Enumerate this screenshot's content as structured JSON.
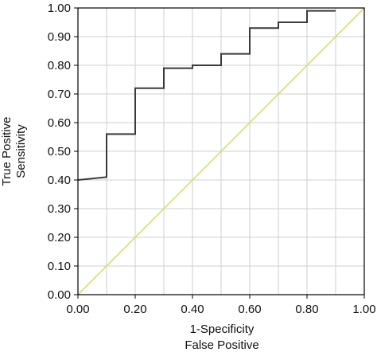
{
  "chart_data": {
    "type": "line",
    "title": "",
    "xlabel": [
      "1-Specificity",
      "False Positive"
    ],
    "ylabel": [
      "True Positive",
      "Sensitivity"
    ],
    "xlim": [
      0,
      1
    ],
    "ylim": [
      0,
      1
    ],
    "x_ticks": [
      "0.00",
      "0.20",
      "0.40",
      "0.60",
      "0.80",
      "1.00"
    ],
    "y_ticks": [
      "0.00",
      "0.10",
      "0.20",
      "0.30",
      "0.40",
      "0.50",
      "0.60",
      "0.70",
      "0.80",
      "0.90",
      "1.00"
    ],
    "grid": true,
    "series": [
      {
        "color": "#3a3a3a",
        "x": [
          0.0,
          0.1,
          0.1,
          0.2,
          0.2,
          0.3,
          0.3,
          0.4,
          0.4,
          0.5,
          0.5,
          0.6,
          0.6,
          0.7,
          0.7,
          0.8,
          0.8,
          0.9
        ],
        "y": [
          0.4,
          0.41,
          0.56,
          0.56,
          0.72,
          0.72,
          0.79,
          0.79,
          0.8,
          0.8,
          0.84,
          0.84,
          0.93,
          0.93,
          0.95,
          0.95,
          0.99,
          0.99
        ]
      },
      {
        "color": "#d8dc7a",
        "x": [
          0,
          1
        ],
        "y": [
          0,
          1
        ]
      }
    ]
  }
}
